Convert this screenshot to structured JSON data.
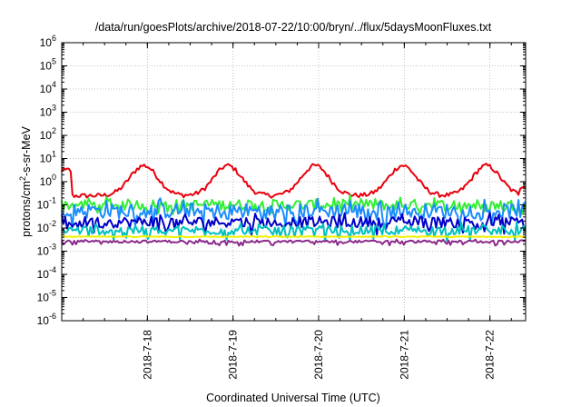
{
  "chart_data": {
    "type": "line",
    "title": "/data/run/goesPlots/archive/2018-07-22/10:00/bryn/../flux/5daysMoonFluxes.txt",
    "xlabel": "Coordinated Universal Time (UTC)",
    "ylabel": "protons/cm2-s-sr-MeV",
    "ylabel_parts": {
      "pre": "protons/cm",
      "sup": "2",
      "post": "-s-sr-MeV"
    },
    "y_scale": "log",
    "ylim_exponents": [
      -6,
      6
    ],
    "y_tick_base": "10",
    "y_tick_exponents": [
      "-6",
      "-5",
      "-4",
      "-3",
      "-2",
      "-1",
      "0",
      "1",
      "2",
      "3",
      "4",
      "5",
      "6"
    ],
    "x_range": [
      "2018-07-17T00:00",
      "2018-07-22T10:00"
    ],
    "x_ticks": [
      "2018-7-18",
      "2018-7-19",
      "2018-7-20",
      "2018-7-21",
      "2018-7-22"
    ],
    "grid": true,
    "legend": "none",
    "series": [
      {
        "color": "#e8000b",
        "style": "diurnal",
        "base": 0.25,
        "amp": 5.0,
        "peaks": [
          "2018-07-17T23:00",
          "2018-07-18T22:30",
          "2018-07-19T23:00",
          "2018-07-20T23:30",
          "2018-07-21T23:00"
        ],
        "start_value": 3.0,
        "end_value": 0.6
      },
      {
        "color": "#33ee33",
        "style": "noisy",
        "base": 0.1,
        "noise": 0.55,
        "dips": 0.35
      },
      {
        "color": "#1a8cff",
        "style": "noisy",
        "base": 0.055,
        "noise": 0.75,
        "dips": 0.6
      },
      {
        "color": "#0000c8",
        "style": "noisy",
        "base": 0.018,
        "noise": 0.55,
        "dips": 0.5
      },
      {
        "color": "#00c0c0",
        "style": "noisy",
        "base": 0.008,
        "noise": 0.45,
        "dips": 0.45
      },
      {
        "color": "#f0f000",
        "style": "flat",
        "base": 0.0042,
        "noise": 0.05,
        "dips": 0.0
      },
      {
        "color": "#8b2a8b",
        "style": "flat",
        "base": 0.0026,
        "noise": 0.12,
        "dips": 0.25
      }
    ]
  }
}
